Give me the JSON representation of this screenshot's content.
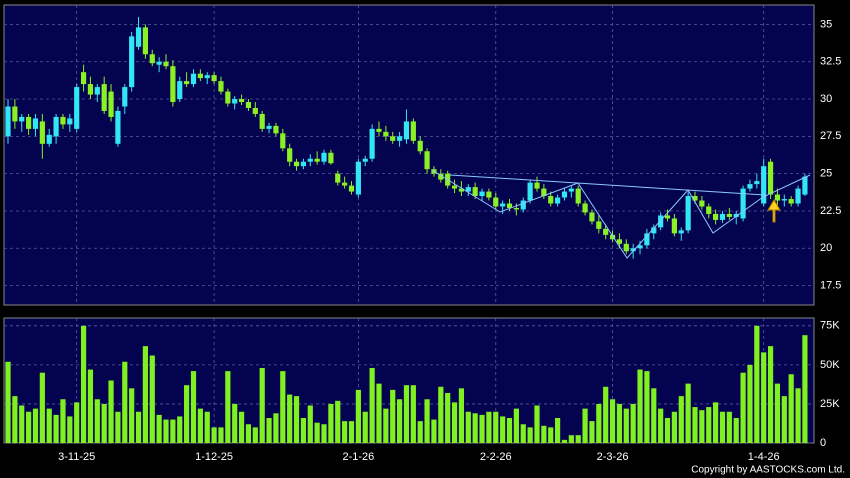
{
  "chart_data": [
    {
      "type": "candlestick",
      "categories": [
        null,
        null,
        null,
        null,
        null,
        null,
        null,
        null,
        null,
        null,
        "3-11-25",
        null,
        null,
        null,
        null,
        null,
        null,
        null,
        null,
        null,
        null,
        null,
        null,
        null,
        null,
        null,
        null,
        null,
        null,
        null,
        "1-12-25",
        null,
        null,
        null,
        null,
        null,
        null,
        null,
        null,
        null,
        null,
        null,
        null,
        null,
        null,
        null,
        null,
        null,
        null,
        null,
        null,
        "2-1-26",
        null,
        null,
        null,
        null,
        null,
        null,
        null,
        null,
        null,
        null,
        null,
        null,
        null,
        null,
        null,
        null,
        null,
        null,
        null,
        "2-2-26",
        null,
        null,
        null,
        null,
        null,
        null,
        null,
        null,
        null,
        null,
        null,
        null,
        null,
        null,
        null,
        null,
        "2-3-26",
        null,
        null,
        null,
        null,
        null,
        null,
        null,
        null,
        null,
        null,
        null,
        null,
        null,
        null,
        null,
        null,
        null,
        null,
        null,
        null,
        null,
        "1-4-26",
        null,
        null,
        null,
        null,
        null,
        null
      ],
      "open": [
        27.5,
        29.5,
        28.5,
        28.8,
        28,
        28.5,
        27,
        27.5,
        28.8,
        28.3,
        28,
        31.8,
        31,
        30.3,
        31,
        30.5,
        27,
        29.5,
        30.8,
        33.5,
        34.8,
        33,
        32.3,
        32.5,
        32.2,
        30,
        31.2,
        31,
        31.7,
        31.4,
        31.6,
        31.2,
        30.5,
        29.7,
        30,
        29.8,
        29.4,
        29,
        28,
        28.2,
        27.7,
        26.7,
        25.8,
        25.5,
        25.8,
        26,
        25.8,
        26.4,
        25,
        24.4,
        24.2,
        23.6,
        25.8,
        26,
        28,
        27.8,
        27.5,
        27.2,
        27.3,
        28.5,
        27.2,
        26.5,
        25.3,
        25,
        25,
        24.2,
        24,
        23.8,
        24.1,
        23.5,
        23.8,
        23.4,
        22.8,
        23,
        22.7,
        22.6,
        23.2,
        24.4,
        24,
        23.5,
        23,
        23.4,
        23.8,
        24,
        23,
        22.4,
        21.8,
        21.3,
        20.9,
        20.6,
        20.3,
        19.8,
        20,
        20.2,
        21,
        21.4,
        22.2,
        22,
        21,
        21.2,
        23.5,
        23.2,
        22.8,
        22.3,
        21.9,
        22.3,
        22.1,
        22,
        24,
        24.3,
        23,
        25.8,
        23.6,
        23.2,
        23.3,
        23,
        23.6
      ],
      "high": [
        30,
        30,
        29,
        29,
        29,
        29,
        28,
        29,
        29,
        29,
        31,
        32.3,
        31.5,
        31,
        31.5,
        31,
        29.5,
        31,
        34.5,
        35.5,
        35,
        33.3,
        32.8,
        33,
        32.6,
        31.5,
        31.8,
        32,
        32,
        31.8,
        31.8,
        31.5,
        30.7,
        30.2,
        30.3,
        30,
        29.8,
        29.2,
        28.4,
        28.4,
        28,
        27,
        26,
        26,
        26.3,
        26.5,
        26.6,
        26.6,
        25.2,
        24.8,
        24.5,
        26,
        26.2,
        28.3,
        28.5,
        28.2,
        27.8,
        27.8,
        29.3,
        28.7,
        27.5,
        26.7,
        25.5,
        25.3,
        25.2,
        24.6,
        24.5,
        24.3,
        24.4,
        24,
        24,
        23.7,
        23.2,
        23.3,
        23,
        23.4,
        24.6,
        24.8,
        24.3,
        23.8,
        23.6,
        24,
        24.2,
        24.2,
        23.2,
        22.6,
        22.2,
        21.6,
        21.2,
        21,
        20.6,
        20.3,
        20.5,
        21.3,
        21.6,
        22.4,
        22.6,
        22.3,
        21.4,
        23.8,
        23.8,
        23.5,
        23,
        22.6,
        22.5,
        22.7,
        22.5,
        24.2,
        24.6,
        25,
        26,
        26,
        24,
        23.6,
        23.5,
        24.2,
        25
      ],
      "low": [
        27,
        28,
        27.8,
        27.6,
        27.5,
        26,
        26.8,
        27,
        28,
        27.8,
        27.8,
        30.5,
        30,
        29.8,
        29,
        28.5,
        26.8,
        29,
        30.5,
        33.3,
        32.7,
        32.2,
        31.8,
        32,
        29.5,
        29.8,
        30.8,
        30.8,
        31.2,
        31,
        31,
        30.3,
        29.5,
        29.3,
        29.6,
        29.2,
        28.8,
        27.8,
        27.7,
        27.5,
        26.5,
        25.5,
        25.2,
        25.3,
        25.5,
        25.6,
        25.6,
        25.6,
        24.2,
        24,
        23.6,
        23.4,
        25.5,
        25.8,
        27.5,
        27.2,
        27,
        26.8,
        27,
        27,
        26.3,
        25,
        24.8,
        24.4,
        24,
        23.7,
        23.5,
        23.5,
        23.3,
        23.2,
        23.2,
        22.6,
        22.3,
        22.5,
        22.2,
        22.4,
        23,
        23.8,
        23.3,
        22.8,
        22.8,
        23.2,
        23.4,
        22.8,
        22.2,
        21.6,
        21,
        20.6,
        20.4,
        20,
        19.6,
        19.3,
        19.6,
        20,
        20.6,
        21.2,
        21.8,
        20.8,
        20.5,
        21,
        23,
        22.6,
        22,
        21.6,
        21.7,
        21.9,
        21.6,
        21.8,
        23.8,
        24,
        22.8,
        23.3,
        22.8,
        22.8,
        22.8,
        22.8,
        23.5
      ],
      "close": [
        29.5,
        28.5,
        28.8,
        28,
        28.7,
        27,
        27.6,
        28.8,
        28.3,
        28.7,
        30.8,
        31,
        30.3,
        30.8,
        29.2,
        28.8,
        29.2,
        30.8,
        34.2,
        34.8,
        33,
        32.4,
        32.5,
        32.2,
        29.8,
        31.2,
        31,
        31.7,
        31.4,
        31.6,
        31.2,
        30.5,
        29.7,
        30,
        29.8,
        29.4,
        29,
        28,
        28.2,
        27.7,
        26.7,
        25.8,
        25.5,
        25.8,
        26,
        25.8,
        26.4,
        25.7,
        24.4,
        24.2,
        23.8,
        25.8,
        26,
        28,
        27.8,
        27.5,
        27.2,
        27.5,
        28.5,
        27.2,
        26.5,
        25.3,
        25,
        24.6,
        24.2,
        24,
        23.8,
        24.1,
        23.5,
        23.8,
        23.4,
        22.8,
        23,
        22.7,
        22.6,
        23.2,
        24.4,
        24,
        23.5,
        23,
        23.4,
        23.8,
        24,
        23,
        22.4,
        21.8,
        21.3,
        20.9,
        20.6,
        20.3,
        19.8,
        20,
        20.2,
        21,
        21.4,
        22.2,
        22,
        21,
        21.2,
        23.5,
        23.2,
        22.8,
        22.3,
        21.9,
        22.3,
        22.1,
        22.3,
        24,
        24.3,
        24.5,
        25.5,
        23.6,
        23.2,
        23.3,
        23,
        24,
        24.8
      ],
      "up_color": "#33e6f5",
      "down_color": "#8cf026",
      "ylim": [
        16.2,
        36.3
      ],
      "yticks": [
        17.5,
        20,
        22.5,
        25,
        27.5,
        30,
        32.5,
        35
      ],
      "grid": true
    },
    {
      "type": "bar",
      "values": [
        52000,
        30000,
        24000,
        20000,
        22000,
        45000,
        22000,
        18000,
        28000,
        17000,
        26000,
        75000,
        47000,
        28000,
        25000,
        40000,
        20000,
        52000,
        35000,
        20000,
        62000,
        56000,
        18000,
        15000,
        15000,
        17000,
        37000,
        46000,
        22000,
        20000,
        10000,
        10000,
        46000,
        25000,
        20000,
        12000,
        10000,
        48000,
        16000,
        19000,
        46000,
        31000,
        30000,
        16000,
        24000,
        13000,
        12000,
        25000,
        27000,
        14000,
        14000,
        34000,
        20000,
        48000,
        38000,
        22000,
        34000,
        28000,
        37000,
        37000,
        14000,
        28000,
        15000,
        36000,
        32000,
        26000,
        35000,
        20000,
        19000,
        18000,
        20000,
        20000,
        17000,
        16000,
        22000,
        12000,
        10000,
        24000,
        11000,
        10000,
        16000,
        2000,
        5000,
        5000,
        22000,
        14000,
        25000,
        36000,
        28000,
        25000,
        22000,
        25000,
        47000,
        46000,
        35000,
        22000,
        16000,
        20000,
        30000,
        38000,
        23000,
        21000,
        23000,
        26000,
        20000,
        20000,
        16000,
        45000,
        50000,
        75000,
        58000,
        62000,
        38000,
        30000,
        44000,
        35000,
        69000
      ],
      "color": "#80f020",
      "ylim": [
        0,
        80000
      ],
      "yticks": [
        0,
        {
          "value": 25000,
          "label": "25K"
        },
        {
          "value": 50000,
          "label": "50K"
        },
        {
          "value": 75000,
          "label": "75K"
        }
      ],
      "grid": true
    },
    {
      "type": "text",
      "copyright": "Copyright by AASTOCKS.com Ltd."
    }
  ]
}
